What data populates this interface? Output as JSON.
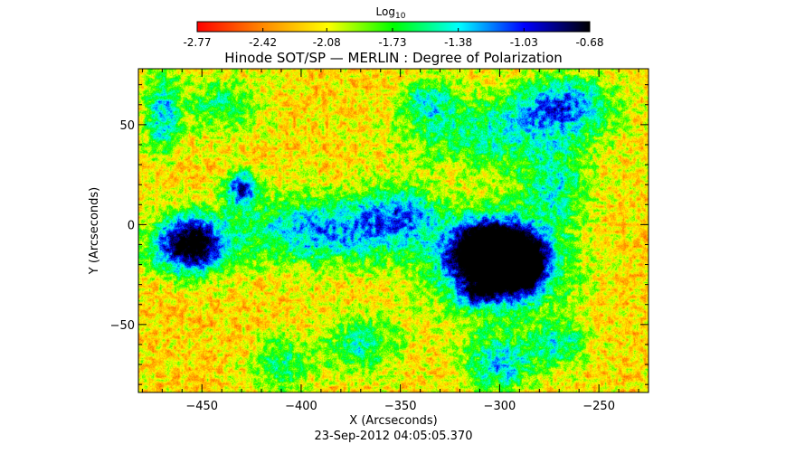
{
  "chart_data": {
    "type": "heatmap",
    "title": "Hinode SOT/SP — MERLIN : Degree of Polarization",
    "xlabel": "X (Arcseconds)",
    "ylabel": "Y (Arcseconds)",
    "date_label": "23-Sep-2012 04:05:05.370",
    "xlim": [
      -482,
      -225
    ],
    "ylim": [
      -84,
      78
    ],
    "x_ticks": [
      -450,
      -400,
      -350,
      -300,
      -250
    ],
    "y_ticks": [
      -50,
      0,
      50
    ],
    "grid": false,
    "colorbar": {
      "label_main": "Log",
      "label_sub": "10",
      "position": "top",
      "range": [
        -2.77,
        -0.68
      ],
      "ticks": [
        "-2.77",
        "-2.42",
        "-2.08",
        "-1.73",
        "-1.38",
        "-1.03",
        "-0.68"
      ],
      "colormap": [
        "#ff0000",
        "#ff8800",
        "#ffff00",
        "#00ff00",
        "#00ffff",
        "#0000ff",
        "#000000"
      ]
    },
    "features": [
      {
        "x": -303,
        "y": -15,
        "sigma_x": 14,
        "sigma_y": 10,
        "amp": 1.1
      },
      {
        "x": -290,
        "y": -22,
        "sigma_x": 9,
        "sigma_y": 9,
        "amp": 0.5
      },
      {
        "x": -311,
        "y": -35,
        "sigma_x": 7,
        "sigma_y": 4,
        "amp": 0.35
      },
      {
        "x": -300,
        "y": -20,
        "sigma_x": 24,
        "sigma_y": 19,
        "amp": 0.45
      },
      {
        "x": -456,
        "y": -10,
        "sigma_x": 13,
        "sigma_y": 10,
        "amp": 0.8
      },
      {
        "x": -430,
        "y": 18,
        "sigma_x": 6,
        "sigma_y": 6,
        "amp": 0.55
      },
      {
        "x": -390,
        "y": -3,
        "sigma_x": 30,
        "sigma_y": 12,
        "amp": 0.45
      },
      {
        "x": -350,
        "y": 5,
        "sigma_x": 14,
        "sigma_y": 10,
        "amp": 0.35
      },
      {
        "x": -470,
        "y": 55,
        "sigma_x": 6,
        "sigma_y": 14,
        "amp": 0.4
      },
      {
        "x": -268,
        "y": 60,
        "sigma_x": 18,
        "sigma_y": 10,
        "amp": 0.45
      },
      {
        "x": -305,
        "y": 45,
        "sigma_x": 30,
        "sigma_y": 12,
        "amp": 0.3
      },
      {
        "x": -335,
        "y": 62,
        "sigma_x": 10,
        "sigma_y": 8,
        "amp": 0.3
      },
      {
        "x": -272,
        "y": 20,
        "sigma_x": 12,
        "sigma_y": 14,
        "amp": 0.3
      },
      {
        "x": -300,
        "y": -70,
        "sigma_x": 12,
        "sigma_y": 10,
        "amp": 0.4
      },
      {
        "x": -270,
        "y": -60,
        "sigma_x": 10,
        "sigma_y": 8,
        "amp": 0.3
      },
      {
        "x": -370,
        "y": -60,
        "sigma_x": 14,
        "sigma_y": 10,
        "amp": 0.3
      },
      {
        "x": -410,
        "y": -70,
        "sigma_x": 10,
        "sigma_y": 10,
        "amp": 0.28
      },
      {
        "x": -440,
        "y": 60,
        "sigma_x": 14,
        "sigma_y": 10,
        "amp": 0.25
      }
    ]
  }
}
